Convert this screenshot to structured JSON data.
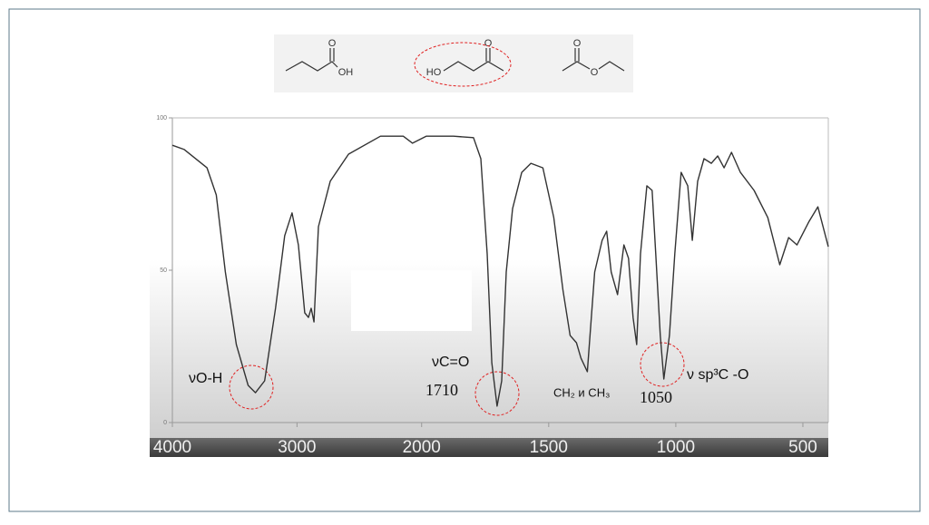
{
  "molecules": [
    {
      "labels": [
        "O",
        "OH"
      ]
    },
    {
      "labels": [
        "O",
        "HO"
      ]
    },
    {
      "labels": [
        "O",
        "O"
      ]
    }
  ],
  "chart_data": {
    "type": "line",
    "x_break": 2000,
    "xlim": [
      4000,
      400
    ],
    "xticks": [
      4000,
      3000,
      2000,
      1500,
      1000,
      500
    ],
    "ylim": [
      0,
      100
    ],
    "yticks": [
      0,
      50,
      100
    ],
    "annotations": [
      "νO-H",
      "νC=O",
      "1710",
      "CH₂ и CH₃",
      "1050",
      "ν sp³C -O"
    ],
    "series": [
      {
        "color": "#333333",
        "x": [
          4000,
          3905,
          3722,
          3648,
          3575,
          3487,
          3392,
          3333,
          3260,
          3172,
          3099,
          3040,
          2989,
          2938,
          2908,
          2886,
          2864,
          2828,
          2733,
          2586,
          2330,
          2147,
          2073,
          1982,
          1875,
          1796,
          1767,
          1742,
          1724,
          1703,
          1685,
          1667,
          1642,
          1606,
          1570,
          1523,
          1480,
          1444,
          1416,
          1391,
          1373,
          1348,
          1319,
          1290,
          1272,
          1254,
          1229,
          1204,
          1186,
          1168,
          1154,
          1139,
          1114,
          1093,
          1079,
          1061,
          1047,
          1025,
          1004,
          979,
          953,
          935,
          914,
          889,
          860,
          835,
          810,
          781,
          746,
          692,
          638,
          591,
          556,
          523,
          477,
          441,
          400
        ],
        "values": [
          91,
          89.6,
          83.6,
          74.7,
          49.4,
          25.6,
          12.2,
          9.8,
          13.7,
          37.5,
          61.3,
          68.8,
          58.3,
          36,
          34.5,
          37.5,
          33,
          64.3,
          79.2,
          88.1,
          94,
          94,
          91.7,
          94,
          94,
          93.5,
          86.6,
          55.4,
          19.6,
          5.4,
          13.7,
          49.4,
          70.2,
          82.1,
          85.1,
          83.6,
          67.3,
          43.5,
          28.6,
          26.2,
          21.1,
          16.7,
          49.4,
          59.8,
          62.8,
          49.4,
          42,
          58.3,
          53.9,
          34.5,
          25.6,
          55.4,
          77.7,
          76.2,
          55.4,
          28.6,
          14.3,
          28.6,
          55.4,
          82.1,
          77.7,
          59.8,
          79.2,
          86.6,
          85.1,
          87.5,
          83.6,
          88.7,
          82.1,
          76.2,
          67.3,
          51.8,
          60.7,
          58.3,
          65.8,
          70.8,
          57.7
        ]
      }
    ]
  }
}
